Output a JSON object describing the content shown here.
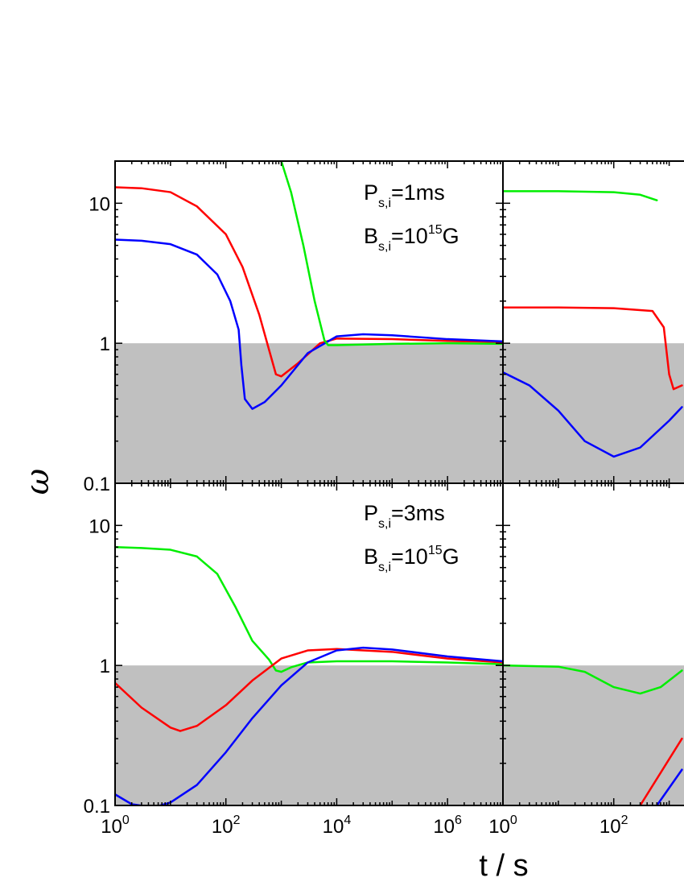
{
  "figure": {
    "xlabel": "t / s",
    "ylabel": "ω",
    "region_color": "#c0c0c0"
  },
  "chart_data": [
    {
      "type": "line",
      "panel": "top-left",
      "xscale": "log",
      "yscale": "log",
      "xlim": [
        1,
        10000000
      ],
      "ylim": [
        0.1,
        20
      ],
      "x_ticks": [
        {
          "value": 1,
          "base": "10",
          "exp": "0"
        },
        {
          "value": 100,
          "base": "10",
          "exp": "2"
        },
        {
          "value": 10000,
          "base": "10",
          "exp": "4"
        },
        {
          "value": 1000000,
          "base": "10",
          "exp": "6"
        }
      ],
      "y_ticks": [
        {
          "value": 0.1,
          "label": "0.1"
        },
        {
          "value": 1,
          "label": "1"
        },
        {
          "value": 10,
          "label": "10"
        }
      ],
      "shaded_region": {
        "y_from": 0.1,
        "y_to": 1
      },
      "annotations": [
        {
          "main": "P",
          "sub": "s,i",
          "rest": "=1ms",
          "sup": ""
        },
        {
          "main": "B",
          "sub": "s,i",
          "rest": "=10",
          "sup": "15",
          "tail": "G"
        }
      ],
      "series": [
        {
          "color": "#ff0000",
          "points": [
            [
              1,
              13
            ],
            [
              3,
              12.8
            ],
            [
              10,
              12
            ],
            [
              30,
              9.5
            ],
            [
              100,
              6
            ],
            [
              200,
              3.5
            ],
            [
              400,
              1.6
            ],
            [
              600,
              0.9
            ],
            [
              800,
              0.6
            ],
            [
              1000,
              0.58
            ],
            [
              2000,
              0.72
            ],
            [
              5000,
              1
            ],
            [
              10000,
              1.08
            ],
            [
              100000,
              1.07
            ],
            [
              1000000,
              1.04
            ],
            [
              10000000,
              1.02
            ]
          ]
        },
        {
          "color": "#0000ff",
          "points": [
            [
              1,
              5.5
            ],
            [
              3,
              5.4
            ],
            [
              10,
              5.1
            ],
            [
              30,
              4.3
            ],
            [
              70,
              3.1
            ],
            [
              120,
              2
            ],
            [
              170,
              1.25
            ],
            [
              190,
              0.7
            ],
            [
              220,
              0.4
            ],
            [
              300,
              0.34
            ],
            [
              500,
              0.38
            ],
            [
              1000,
              0.5
            ],
            [
              3000,
              0.85
            ],
            [
              10000,
              1.12
            ],
            [
              30000,
              1.16
            ],
            [
              100000,
              1.14
            ],
            [
              1000000,
              1.07
            ],
            [
              10000000,
              1.03
            ]
          ]
        },
        {
          "color": "#00ee00",
          "points": [
            [
              1000,
              20
            ],
            [
              1500,
              12
            ],
            [
              2500,
              5
            ],
            [
              4000,
              2
            ],
            [
              6000,
              1.05
            ],
            [
              7000,
              0.97
            ],
            [
              10000,
              0.97
            ],
            [
              100000,
              0.99
            ],
            [
              1000000,
              1
            ],
            [
              10000000,
              0.99
            ]
          ]
        }
      ]
    },
    {
      "type": "line",
      "panel": "top-right",
      "xscale": "log",
      "yscale": "log",
      "xlim": [
        1,
        10000000
      ],
      "ylim": [
        0.1,
        20
      ],
      "shaded_region": {
        "y_from": 0.1,
        "y_to": 1
      },
      "series": [
        {
          "color": "#00ee00",
          "points": [
            [
              1,
              12.2
            ],
            [
              10,
              12.2
            ],
            [
              100,
              12
            ],
            [
              300,
              11.5
            ],
            [
              600,
              10.5
            ]
          ]
        },
        {
          "color": "#ff0000",
          "points": [
            [
              1,
              1.8
            ],
            [
              10,
              1.8
            ],
            [
              100,
              1.78
            ],
            [
              500,
              1.7
            ],
            [
              800,
              1.3
            ],
            [
              1000,
              0.6
            ],
            [
              1200,
              0.47
            ],
            [
              1700,
              0.5
            ]
          ]
        },
        {
          "color": "#0000ff",
          "points": [
            [
              1,
              0.62
            ],
            [
              3,
              0.5
            ],
            [
              10,
              0.33
            ],
            [
              30,
              0.2
            ],
            [
              100,
              0.155
            ],
            [
              300,
              0.18
            ],
            [
              1000,
              0.28
            ],
            [
              1700,
              0.35
            ]
          ]
        }
      ]
    },
    {
      "type": "line",
      "panel": "bottom-left",
      "xscale": "log",
      "yscale": "log",
      "xlim": [
        1,
        10000000
      ],
      "ylim": [
        0.1,
        20
      ],
      "x_ticks": [
        {
          "value": 1,
          "base": "10",
          "exp": "0"
        },
        {
          "value": 100,
          "base": "10",
          "exp": "2"
        },
        {
          "value": 10000,
          "base": "10",
          "exp": "4"
        },
        {
          "value": 1000000,
          "base": "10",
          "exp": "6"
        },
        {
          "value": 10000000,
          "base": "10",
          "exp": "0"
        }
      ],
      "y_ticks": [
        {
          "value": 0.1,
          "label": "0.1"
        },
        {
          "value": 1,
          "label": "1"
        },
        {
          "value": 10,
          "label": "10"
        }
      ],
      "shaded_region": {
        "y_from": 0.1,
        "y_to": 1
      },
      "annotations": [
        {
          "main": "P",
          "sub": "s,i",
          "rest": "=3ms",
          "sup": ""
        },
        {
          "main": "B",
          "sub": "s,i",
          "rest": "=10",
          "sup": "15",
          "tail": "G"
        }
      ],
      "series": [
        {
          "color": "#00ee00",
          "points": [
            [
              1,
              7
            ],
            [
              3,
              6.9
            ],
            [
              10,
              6.7
            ],
            [
              30,
              6
            ],
            [
              70,
              4.5
            ],
            [
              150,
              2.6
            ],
            [
              300,
              1.5
            ],
            [
              600,
              1.1
            ],
            [
              800,
              0.92
            ],
            [
              1000,
              0.9
            ],
            [
              1500,
              0.97
            ],
            [
              3000,
              1.05
            ],
            [
              10000,
              1.07
            ],
            [
              100000,
              1.07
            ],
            [
              1000000,
              1.05
            ],
            [
              10000000,
              1.02
            ]
          ]
        },
        {
          "color": "#ff0000",
          "points": [
            [
              1,
              0.75
            ],
            [
              3,
              0.5
            ],
            [
              10,
              0.36
            ],
            [
              15,
              0.34
            ],
            [
              30,
              0.37
            ],
            [
              100,
              0.52
            ],
            [
              300,
              0.78
            ],
            [
              1000,
              1.12
            ],
            [
              3000,
              1.28
            ],
            [
              10000,
              1.31
            ],
            [
              100000,
              1.25
            ],
            [
              1000000,
              1.12
            ],
            [
              10000000,
              1.05
            ]
          ]
        },
        {
          "color": "#0000ff",
          "points": [
            [
              1,
              0.12
            ],
            [
              2,
              0.102
            ],
            [
              5,
              0.097
            ],
            [
              10,
              0.105
            ],
            [
              30,
              0.14
            ],
            [
              100,
              0.24
            ],
            [
              300,
              0.42
            ],
            [
              1000,
              0.72
            ],
            [
              3000,
              1.05
            ],
            [
              10000,
              1.28
            ],
            [
              30000,
              1.34
            ],
            [
              100000,
              1.3
            ],
            [
              1000000,
              1.16
            ],
            [
              10000000,
              1.07
            ]
          ]
        }
      ]
    },
    {
      "type": "line",
      "panel": "bottom-right",
      "xscale": "log",
      "yscale": "log",
      "xlim": [
        1,
        10000000
      ],
      "ylim": [
        0.1,
        20
      ],
      "x_ticks": [
        {
          "value": 100,
          "base": "10",
          "exp": "2"
        }
      ],
      "shaded_region": {
        "y_from": 0.1,
        "y_to": 1
      },
      "series": [
        {
          "color": "#00ee00",
          "points": [
            [
              1,
              1
            ],
            [
              10,
              0.98
            ],
            [
              30,
              0.9
            ],
            [
              100,
              0.7
            ],
            [
              300,
              0.63
            ],
            [
              700,
              0.7
            ],
            [
              1700,
              0.92
            ]
          ]
        },
        {
          "color": "#ff0000",
          "points": [
            [
              300,
              0.1
            ],
            [
              1700,
              0.3
            ]
          ]
        },
        {
          "color": "#0000ff",
          "points": [
            [
              600,
              0.1
            ],
            [
              1700,
              0.18
            ]
          ]
        }
      ]
    }
  ]
}
